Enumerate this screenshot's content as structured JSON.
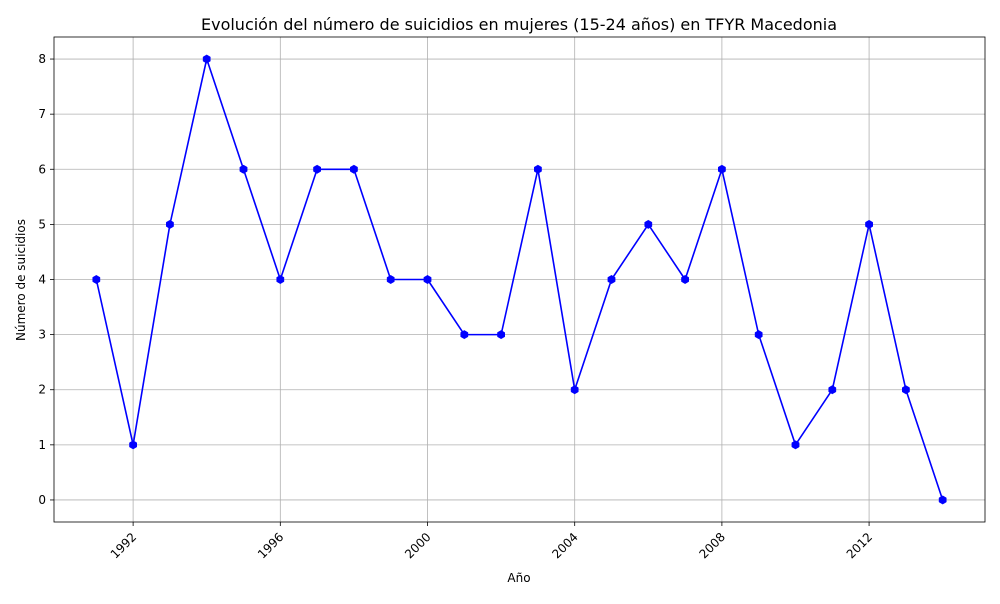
{
  "chart_data": {
    "type": "line",
    "title": "Evolución del número de suicidios en mujeres (15-24 años) en TFYR Macedonia",
    "xlabel": "Año",
    "ylabel": "Número de suicidios",
    "x": [
      1991,
      1992,
      1993,
      1994,
      1995,
      1996,
      1997,
      1998,
      1999,
      2000,
      2001,
      2002,
      2003,
      2004,
      2005,
      2006,
      2007,
      2008,
      2009,
      2010,
      2011,
      2012,
      2013,
      2014
    ],
    "series": [
      {
        "values": [
          4,
          1,
          5,
          8,
          6,
          4,
          6,
          6,
          4,
          4,
          3,
          3,
          6,
          2,
          4,
          5,
          4,
          6,
          3,
          1,
          2,
          5,
          2,
          0
        ],
        "color": "#0000ff",
        "marker": "hexagon"
      }
    ],
    "xticks": [
      "1992",
      "1996",
      "2000",
      "2004",
      "2008",
      "2012"
    ],
    "xtick_values": [
      1992,
      1996,
      2000,
      2004,
      2008,
      2012
    ],
    "yticks": [
      "0",
      "1",
      "2",
      "3",
      "4",
      "5",
      "6",
      "7",
      "8"
    ],
    "ytick_values": [
      0,
      1,
      2,
      3,
      4,
      5,
      6,
      7,
      8
    ],
    "xlim": [
      1989.85,
      2015.15
    ],
    "ylim": [
      -0.4,
      8.4
    ],
    "grid": true,
    "xtick_rotation": 45
  }
}
